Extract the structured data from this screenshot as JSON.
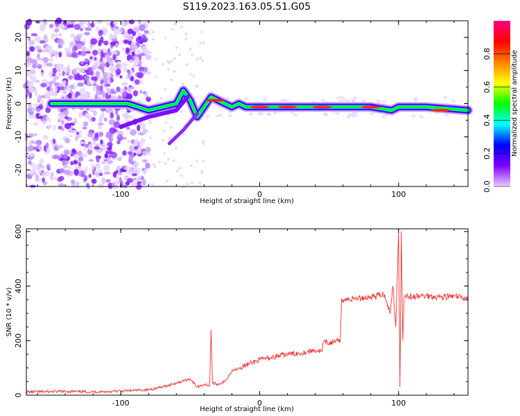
{
  "chart_data": [
    {
      "type": "heatmap",
      "title": "S119.2023.163.05.51.G05",
      "xlabel": "Height of straight line (km)",
      "ylabel": "Frequency (Hz)",
      "xlim": [
        -168,
        150
      ],
      "ylim": [
        -25,
        25
      ],
      "x_ticks": [
        -100,
        0,
        100
      ],
      "y_ticks": [
        -20,
        -10,
        0,
        10,
        20
      ],
      "colorbar": {
        "label": "Normalized spectral amplitude",
        "range": [
          0,
          1
        ],
        "ticks": [
          "0.0",
          "0.2",
          "0.4",
          "0.6",
          "0.8"
        ],
        "colors": [
          "#e6ccff",
          "#8000ff",
          "#0000ff",
          "#00ffff",
          "#00ff00",
          "#ffff00",
          "#ff8000",
          "#ff0000",
          "#ff0080"
        ]
      },
      "ridge": {
        "x": [
          -150,
          -120,
          -95,
          -80,
          -70,
          -60,
          -55,
          -50,
          -45,
          -40,
          -35,
          -30,
          -25,
          -20,
          -15,
          -10,
          0,
          20,
          40,
          60,
          80,
          95,
          100,
          120,
          150
        ],
        "y": [
          0,
          0,
          0,
          -2,
          -1,
          0,
          4,
          1,
          -4,
          -1,
          2,
          1,
          0,
          -1,
          0,
          -1,
          -1,
          -1,
          -1,
          -1,
          -1,
          -2,
          -1,
          -1,
          -2
        ]
      }
    },
    {
      "type": "line",
      "xlabel": "Height of straight line (km)",
      "ylabel": "SNR (10 * v/v)",
      "xlim": [
        -168,
        150
      ],
      "ylim": [
        0,
        610
      ],
      "x_ticks": [
        -100,
        0,
        100
      ],
      "y_ticks": [
        0,
        200,
        400,
        600
      ],
      "line_color": "#ee3030",
      "series": [
        {
          "name": "SNR",
          "x": [
            -168,
            -140,
            -120,
            -100,
            -80,
            -70,
            -60,
            -50,
            -45,
            -40,
            -36,
            -35,
            -34,
            -30,
            -25,
            -20,
            -15,
            -10,
            -5,
            0,
            10,
            20,
            30,
            40,
            45,
            46,
            50,
            55,
            58,
            59,
            60,
            70,
            80,
            90,
            94,
            96,
            98,
            100,
            101,
            102,
            103,
            104,
            105,
            110,
            120,
            130,
            140,
            150
          ],
          "y": [
            12,
            14,
            12,
            15,
            20,
            30,
            45,
            60,
            30,
            40,
            35,
            240,
            45,
            40,
            50,
            90,
            100,
            110,
            120,
            130,
            140,
            150,
            155,
            165,
            160,
            195,
            190,
            200,
            195,
            355,
            350,
            355,
            360,
            370,
            300,
            400,
            250,
            600,
            30,
            600,
            200,
            360,
            365,
            360,
            365,
            360,
            362,
            355
          ]
        }
      ]
    }
  ]
}
